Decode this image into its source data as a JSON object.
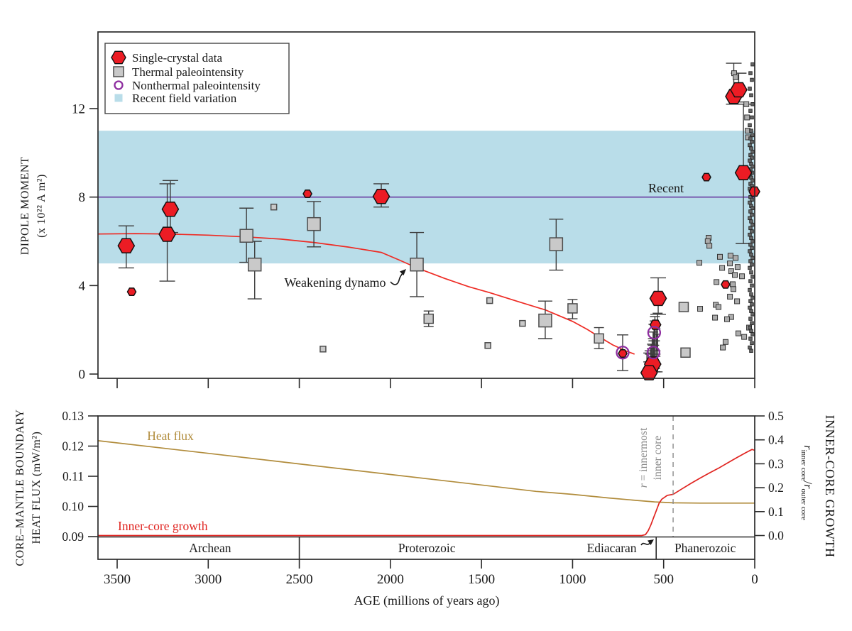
{
  "chart_data": {
    "type": "line",
    "x_axis": {
      "label": "AGE (millions of years ago)",
      "ticks": [
        3500,
        3000,
        2500,
        2000,
        1500,
        1000,
        500,
        0
      ],
      "range": [
        3605,
        0
      ]
    },
    "top": {
      "y_label_line1": "DIPOLE MOMENT",
      "y_label_line2": "(x 10²² A m²)",
      "y_ticks": [
        0,
        4,
        8,
        12
      ],
      "ylim": [
        -0.2,
        15.5
      ],
      "band": {
        "vmin": 5,
        "vmax": 11,
        "color": "#b9dde9"
      },
      "recent_line": {
        "label": "Recent",
        "value": 8,
        "color": "#6a3fa3"
      },
      "weakening_label": "Weakening dynamo",
      "curve_color": "#ee2b24",
      "weakening_curve": [
        [
          3605,
          6.33
        ],
        [
          3400,
          6.35
        ],
        [
          3225,
          6.33
        ],
        [
          3000,
          6.28
        ],
        [
          2790,
          6.2
        ],
        [
          2600,
          6.1
        ],
        [
          2420,
          5.95
        ],
        [
          2230,
          5.74
        ],
        [
          2050,
          5.5
        ],
        [
          1950,
          5.15
        ],
        [
          1855,
          4.8
        ],
        [
          1700,
          4.32
        ],
        [
          1570,
          3.95
        ],
        [
          1455,
          3.68
        ],
        [
          1300,
          3.28
        ],
        [
          1150,
          2.9
        ],
        [
          1000,
          2.38
        ],
        [
          920,
          2.02
        ],
        [
          857,
          1.7
        ],
        [
          780,
          1.32
        ],
        [
          700,
          1.02
        ],
        [
          660,
          0.9
        ]
      ],
      "legend": [
        "Single-crystal data",
        "Thermal paleointensity",
        "Nonthermal paleointensity",
        "Recent field variation"
      ],
      "single_crystal": [
        {
          "age": 3450,
          "v": 5.8,
          "e": [
            4.8,
            6.7
          ],
          "s": "L"
        },
        {
          "age": 3420,
          "v": 3.72,
          "s": "S"
        },
        {
          "age": 3225,
          "v": 6.32,
          "e": [
            4.2,
            8.6
          ],
          "s": "L"
        },
        {
          "age": 3208,
          "v": 7.45,
          "e": [
            6.4,
            8.75
          ],
          "s": "L"
        },
        {
          "age": 2455,
          "v": 8.15,
          "s": "S"
        },
        {
          "age": 2050,
          "v": 8.03,
          "e": [
            7.55,
            8.6
          ],
          "s": "L"
        },
        {
          "age": 725,
          "v": 0.93,
          "s": "S"
        },
        {
          "age": 530,
          "v": 3.42,
          "e": [
            2.7,
            4.35
          ],
          "s": "L"
        },
        {
          "age": 545,
          "v": 2.23,
          "s": "M"
        },
        {
          "age": 560,
          "v": 0.45,
          "e": [
            0.1,
            0.9
          ],
          "s": "L"
        },
        {
          "age": 580,
          "v": 0.06,
          "s": "L"
        },
        {
          "age": 265,
          "v": 8.9,
          "s": "S"
        },
        {
          "age": 160,
          "v": 4.05,
          "s": "S"
        },
        {
          "age": 115,
          "v": 12.55,
          "e": [
            12.2,
            14.05
          ],
          "s": "L"
        },
        {
          "age": 88,
          "v": 12.85,
          "e": [
            12.3,
            13.6
          ],
          "s": "L"
        },
        {
          "age": 62,
          "v": 9.1,
          "e": [
            5.9,
            12.2
          ],
          "s": "L"
        },
        {
          "age": 2,
          "v": 8.25,
          "s": "M"
        }
      ],
      "thermal": [
        {
          "age": 2790,
          "v": 6.25,
          "e": [
            5.05,
            7.5
          ],
          "s": "L"
        },
        {
          "age": 2745,
          "v": 4.95,
          "e": [
            3.4,
            6.0
          ],
          "s": "L"
        },
        {
          "age": 2640,
          "v": 7.55,
          "s": "S"
        },
        {
          "age": 2420,
          "v": 6.78,
          "e": [
            5.75,
            7.8
          ],
          "s": "L"
        },
        {
          "age": 2370,
          "v": 1.13,
          "s": "S"
        },
        {
          "age": 1855,
          "v": 4.95,
          "e": [
            3.5,
            6.4
          ],
          "s": "L"
        },
        {
          "age": 1790,
          "v": 2.5,
          "e": [
            2.15,
            2.85
          ],
          "s": "M"
        },
        {
          "age": 1455,
          "v": 3.32,
          "s": "S"
        },
        {
          "age": 1465,
          "v": 1.29,
          "s": "S"
        },
        {
          "age": 1275,
          "v": 2.29,
          "s": "S"
        },
        {
          "age": 1090,
          "v": 5.87,
          "e": [
            4.7,
            7.0
          ],
          "s": "L"
        },
        {
          "age": 1150,
          "v": 2.42,
          "e": [
            1.6,
            3.3
          ],
          "s": "L"
        },
        {
          "age": 1000,
          "v": 2.97,
          "e": [
            2.5,
            3.37
          ],
          "s": "M"
        },
        {
          "age": 855,
          "v": 1.61,
          "e": [
            1.15,
            2.1
          ],
          "s": "M"
        },
        {
          "age": 390,
          "v": 3.03,
          "s": "M"
        },
        {
          "age": 380,
          "v": 0.97,
          "s": "M"
        }
      ],
      "nonthermal": [
        {
          "age": 725,
          "v": 0.97,
          "e": [
            0.16,
            1.77
          ]
        },
        {
          "age": 552,
          "v": 1.87,
          "e": [
            1.5,
            2.25
          ]
        },
        {
          "age": 556,
          "v": 0.97,
          "e": [
            0.6,
            1.3
          ]
        }
      ],
      "small_squares": [
        [
          304,
          5.03
        ],
        [
          253,
          6.16
        ],
        [
          258,
          6.0
        ],
        [
          249,
          5.8
        ],
        [
          191,
          5.3
        ],
        [
          133,
          5.35
        ],
        [
          105,
          5.25
        ],
        [
          136,
          5.0
        ],
        [
          94,
          4.84
        ],
        [
          179,
          4.8
        ],
        [
          129,
          4.65
        ],
        [
          109,
          4.48
        ],
        [
          70,
          4.42
        ],
        [
          210,
          4.16
        ],
        [
          121,
          4.06
        ],
        [
          117,
          3.84
        ],
        [
          136,
          3.5
        ],
        [
          97,
          3.29
        ],
        [
          214,
          3.13
        ],
        [
          199,
          3.03
        ],
        [
          129,
          2.58
        ],
        [
          218,
          2.55
        ],
        [
          152,
          2.48
        ],
        [
          90,
          1.84
        ],
        [
          58,
          1.68
        ],
        [
          175,
          1.2
        ],
        [
          31,
          2.1
        ],
        [
          160,
          1.45
        ],
        [
          113,
          13.6
        ],
        [
          105,
          13.42
        ],
        [
          300,
          2.95
        ],
        [
          46,
          12.2
        ],
        [
          42,
          11.6
        ],
        [
          39,
          11.0
        ],
        [
          37,
          10.7
        ]
      ],
      "edge_column_values": [
        14.0,
        13.6,
        13.3,
        12.9,
        12.6,
        12.2,
        11.9,
        11.6,
        11.25,
        11.0,
        10.8,
        10.65,
        10.5,
        10.35,
        10.2,
        10.05,
        9.9,
        9.78,
        9.65,
        9.5,
        9.38,
        9.25,
        9.1,
        9.0,
        8.88,
        8.75,
        8.6,
        8.5,
        8.38,
        8.25,
        8.1,
        8.0,
        7.88,
        7.75,
        7.6,
        7.5,
        7.35,
        7.2,
        7.05,
        6.9,
        6.75,
        6.6,
        6.45,
        6.3,
        6.15,
        6.0,
        5.85,
        5.7,
        5.55,
        5.4,
        5.25,
        5.1,
        4.95,
        4.8,
        4.6,
        4.4,
        4.2,
        4.0,
        3.8,
        3.6,
        3.45,
        3.3,
        3.15,
        3.0,
        2.85,
        2.7,
        2.5,
        2.3,
        2.1,
        1.95,
        1.8,
        1.6,
        1.4,
        1.2,
        1.05
      ],
      "extra_caps": [
        {
          "age": 533,
          "lo": 0.1,
          "hi": 2.75,
          "hw": 7
        },
        {
          "age": 548,
          "lo": 0.25,
          "hi": 2.6,
          "hw": 7
        },
        {
          "age": 553,
          "lo": 0.5,
          "hi": 2.4,
          "hw": 6
        },
        {
          "age": 558,
          "lo": 0.3,
          "hi": 1.9,
          "hw": 6
        },
        {
          "age": 563,
          "lo": 0.6,
          "hi": 1.6,
          "hw": 6
        },
        {
          "age": 568,
          "lo": 0.2,
          "hi": 1.35,
          "hw": 6
        },
        {
          "age": 541,
          "lo": 0.8,
          "hi": 2.05,
          "hw": 6
        },
        {
          "age": 537,
          "lo": 1.05,
          "hi": 1.8,
          "hw": 5
        },
        {
          "age": 572,
          "lo": 0.45,
          "hi": 1.15,
          "hw": 5
        },
        {
          "age": 585,
          "lo": 0.35,
          "hi": 1.05,
          "hw": 5
        },
        {
          "age": 592,
          "lo": 0.55,
          "hi": 0.95,
          "hw": 5
        }
      ]
    },
    "bottom": {
      "left_label_line1": "CORE–MANTLE BOUNDARY",
      "left_label_line2": "HEAT FLUX (mW/m²)",
      "left_ticks": [
        "0.13",
        "0.12",
        "0.11",
        "0.10",
        "0.09"
      ],
      "right_label": "INNER-CORE GROWTH",
      "right_ticks": [
        "0.5",
        "0.4",
        "0.3",
        "0.2",
        "0.1",
        "0.0"
      ],
      "ratio": {
        "r1": "r",
        "sub1": "inner core",
        "slash": "/",
        "r2": "r",
        "sub2": "outer core"
      },
      "heat_flux": {
        "label": "Heat flux",
        "color": "#b18c3c",
        "points": [
          [
            3605,
            0.1218
          ],
          [
            3000,
            0.1176
          ],
          [
            2500,
            0.1141
          ],
          [
            2000,
            0.1106
          ],
          [
            1500,
            0.1071
          ],
          [
            1200,
            0.105
          ],
          [
            1000,
            0.104
          ],
          [
            800,
            0.1028
          ],
          [
            650,
            0.102
          ],
          [
            550,
            0.1015
          ],
          [
            450,
            0.1012
          ],
          [
            300,
            0.1011
          ],
          [
            0,
            0.1011
          ]
        ]
      },
      "inner_core": {
        "label": "Inner-core growth",
        "color": "#e02420",
        "points": [
          [
            3605,
            0.0
          ],
          [
            620,
            0.0
          ],
          [
            600,
            0.004
          ],
          [
            585,
            0.02
          ],
          [
            570,
            0.045
          ],
          [
            555,
            0.075
          ],
          [
            540,
            0.105
          ],
          [
            525,
            0.135
          ],
          [
            510,
            0.152
          ],
          [
            480,
            0.168
          ],
          [
            448,
            0.172
          ],
          [
            400,
            0.195
          ],
          [
            350,
            0.218
          ],
          [
            300,
            0.24
          ],
          [
            250,
            0.261
          ],
          [
            200,
            0.281
          ],
          [
            150,
            0.303
          ],
          [
            100,
            0.325
          ],
          [
            50,
            0.346
          ],
          [
            15,
            0.36
          ],
          [
            0,
            0.356
          ]
        ]
      },
      "dashed_line": {
        "age": 448,
        "italic": "r",
        "rest": " = innermost",
        "line2": "inner core",
        "color": "#8a8a8a"
      },
      "eras": {
        "boundaries": [
          2500,
          541
        ],
        "labels": [
          {
            "label": "Archean",
            "age_center": 2990
          },
          {
            "label": "Proterozoic",
            "age_center": 1800
          },
          {
            "label": "Ediacaran",
            "age_center": 785
          },
          {
            "label": "Phanerozoic",
            "age_center": 272
          }
        ]
      }
    }
  }
}
